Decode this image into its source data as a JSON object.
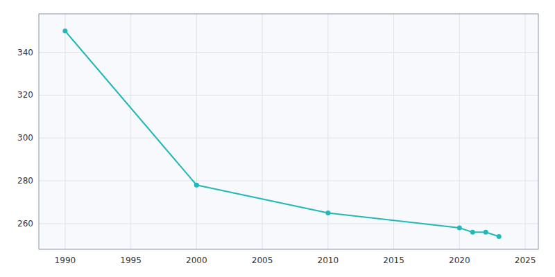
{
  "chart_data": {
    "type": "line",
    "x": [
      1990,
      2000,
      2010,
      2020,
      2021,
      2022,
      2023
    ],
    "values": [
      350,
      278,
      265,
      258,
      256,
      256,
      254
    ],
    "color": "#20B8B8",
    "marker": "circle",
    "xlim": [
      1988,
      2026
    ],
    "ylim": [
      248,
      358
    ],
    "xticks": [
      1990,
      1995,
      2000,
      2005,
      2010,
      2015,
      2020,
      2025
    ],
    "yticks": [
      260,
      280,
      300,
      320,
      340
    ],
    "grid": true
  }
}
